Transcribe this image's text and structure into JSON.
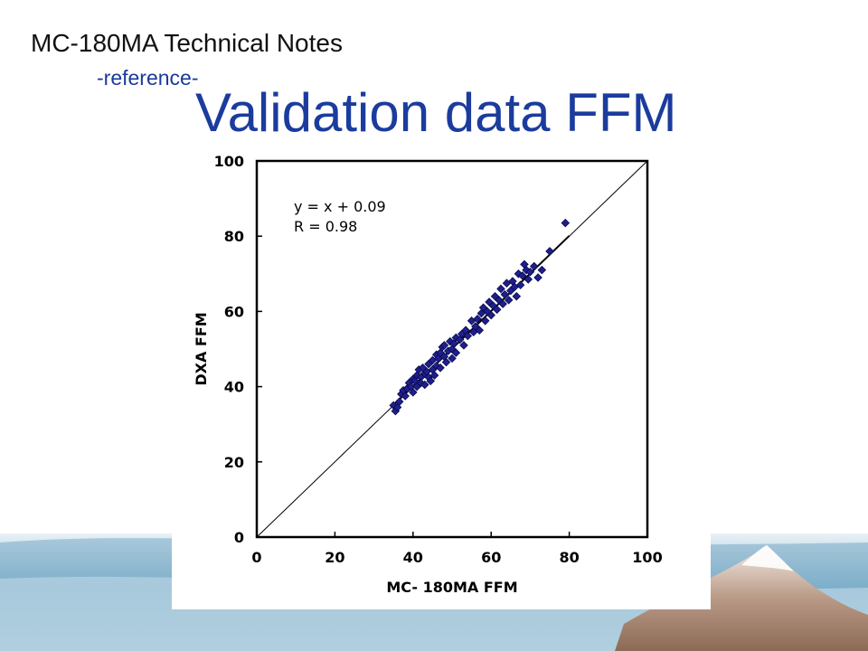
{
  "header": {
    "title": "MC-180MA  Technical Notes",
    "subtitle": "-reference-"
  },
  "slide": {
    "title": "Validation data FFM"
  },
  "colors": {
    "title_blue": "#1b3c9e",
    "point_color": "#1f1f8c",
    "bg_wave_blue": "#5e98b8",
    "bg_mountain": "#a07a62"
  },
  "chart_data": {
    "type": "scatter",
    "xlabel": "MC- 180MA FFM",
    "ylabel": "DXA FFM",
    "xlim": [
      0,
      100
    ],
    "ylim": [
      0,
      100
    ],
    "xticks": [
      0,
      20,
      40,
      60,
      80,
      100
    ],
    "yticks": [
      0,
      20,
      40,
      60,
      80,
      100
    ],
    "grid": false,
    "annotations": [
      "y = x + 0.09",
      "R = 0.98"
    ],
    "reference_line": {
      "type": "identity",
      "from": [
        0,
        0
      ],
      "to": [
        100,
        100
      ]
    },
    "regression_line": {
      "slope": 1,
      "intercept": 0.09,
      "x_range": [
        35,
        80
      ]
    },
    "points": [
      [
        35,
        35
      ],
      [
        35.5,
        33.5
      ],
      [
        36,
        34.5
      ],
      [
        36.5,
        36
      ],
      [
        37,
        38
      ],
      [
        37.5,
        39
      ],
      [
        38,
        37.5
      ],
      [
        38.5,
        39.5
      ],
      [
        39,
        41
      ],
      [
        39.5,
        40
      ],
      [
        40,
        38.5
      ],
      [
        40,
        42
      ],
      [
        40.5,
        41.5
      ],
      [
        41,
        43
      ],
      [
        41,
        40
      ],
      [
        41.5,
        44.5
      ],
      [
        42,
        42.5
      ],
      [
        42,
        41
      ],
      [
        42.5,
        45
      ],
      [
        43,
        43.5
      ],
      [
        43,
        40.5
      ],
      [
        43.5,
        44
      ],
      [
        44,
        42.5
      ],
      [
        44,
        46
      ],
      [
        44.5,
        41.5
      ],
      [
        45,
        44.5
      ],
      [
        45,
        47
      ],
      [
        45.5,
        43
      ],
      [
        46,
        45.5
      ],
      [
        46,
        48.5
      ],
      [
        46.5,
        47.5
      ],
      [
        47,
        49
      ],
      [
        47,
        45
      ],
      [
        47.5,
        50.5
      ],
      [
        48,
        48
      ],
      [
        48,
        51
      ],
      [
        48.5,
        46.5
      ],
      [
        49,
        49.5
      ],
      [
        49.5,
        52
      ],
      [
        50,
        50
      ],
      [
        50,
        47.5
      ],
      [
        50.5,
        51.5
      ],
      [
        51,
        53
      ],
      [
        51,
        49
      ],
      [
        52,
        52.5
      ],
      [
        52.5,
        54
      ],
      [
        53,
        51
      ],
      [
        53.5,
        55
      ],
      [
        54,
        53.5
      ],
      [
        55,
        57.5
      ],
      [
        55.5,
        54.5
      ],
      [
        56,
        56
      ],
      [
        56.5,
        58
      ],
      [
        57,
        55
      ],
      [
        57.5,
        59.5
      ],
      [
        58,
        61
      ],
      [
        58.5,
        57.5
      ],
      [
        59,
        60
      ],
      [
        59.5,
        62.5
      ],
      [
        60,
        59
      ],
      [
        60.5,
        61.5
      ],
      [
        61,
        64
      ],
      [
        61.5,
        60.5
      ],
      [
        62,
        63
      ],
      [
        62.5,
        66
      ],
      [
        63,
        62
      ],
      [
        63.5,
        64.5
      ],
      [
        64,
        67.5
      ],
      [
        64.5,
        63
      ],
      [
        65,
        65.5
      ],
      [
        65.5,
        68
      ],
      [
        66,
        66.5
      ],
      [
        66.5,
        64
      ],
      [
        67,
        70
      ],
      [
        67.5,
        67
      ],
      [
        68,
        69.5
      ],
      [
        68.5,
        72.5
      ],
      [
        69,
        71
      ],
      [
        69.5,
        68.5
      ],
      [
        70,
        70.5
      ],
      [
        71,
        72
      ],
      [
        72,
        69
      ],
      [
        73,
        71
      ],
      [
        75,
        76
      ],
      [
        79,
        83.5
      ]
    ]
  }
}
